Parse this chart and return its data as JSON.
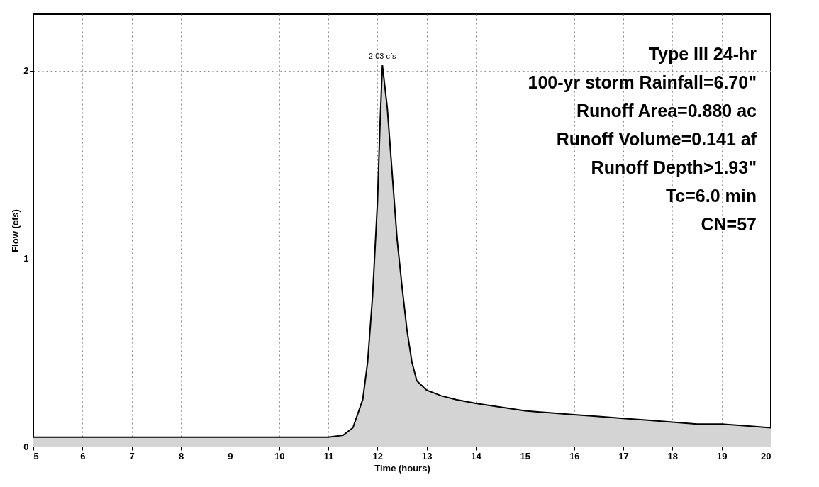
{
  "chart_data": {
    "type": "area",
    "xlabel": "Time  (hours)",
    "ylabel": "Flow  (cfs)",
    "x": [
      5,
      6,
      7,
      8,
      9,
      10,
      10.5,
      11,
      11.3,
      11.5,
      11.7,
      11.8,
      11.9,
      12.0,
      12.05,
      12.1,
      12.2,
      12.3,
      12.4,
      12.5,
      12.6,
      12.7,
      12.8,
      13.0,
      13.3,
      13.6,
      14,
      14.5,
      15,
      15.5,
      16,
      16.5,
      17,
      17.5,
      18,
      18.5,
      19,
      19.5,
      20
    ],
    "series": [
      {
        "color": "#d4d4d4",
        "values": [
          0.05,
          0.05,
          0.05,
          0.05,
          0.05,
          0.05,
          0.05,
          0.05,
          0.06,
          0.1,
          0.25,
          0.45,
          0.8,
          1.3,
          1.7,
          2.03,
          1.8,
          1.45,
          1.1,
          0.85,
          0.62,
          0.45,
          0.35,
          0.3,
          0.27,
          0.25,
          0.23,
          0.21,
          0.19,
          0.18,
          0.17,
          0.16,
          0.15,
          0.14,
          0.13,
          0.12,
          0.12,
          0.11,
          0.1
        ]
      }
    ],
    "xlim": [
      5,
      20
    ],
    "xticks": [
      5,
      6,
      7,
      8,
      9,
      10,
      11,
      12,
      13,
      14,
      15,
      16,
      17,
      18,
      19,
      20
    ],
    "ylim": [
      0,
      2.3
    ],
    "yticks": [
      0,
      1,
      2
    ],
    "grid": true,
    "annotations": [
      {
        "text": "2.03 cfs",
        "x": 12.1,
        "y": 2.03
      },
      "Type III 24-hr",
      "100-yr storm Rainfall=6.70\"",
      "Runoff Area=0.880 ac",
      "Runoff Volume=0.141 af",
      "Runoff Depth>1.93\"",
      "Tc=6.0 min",
      "CN=57"
    ]
  }
}
